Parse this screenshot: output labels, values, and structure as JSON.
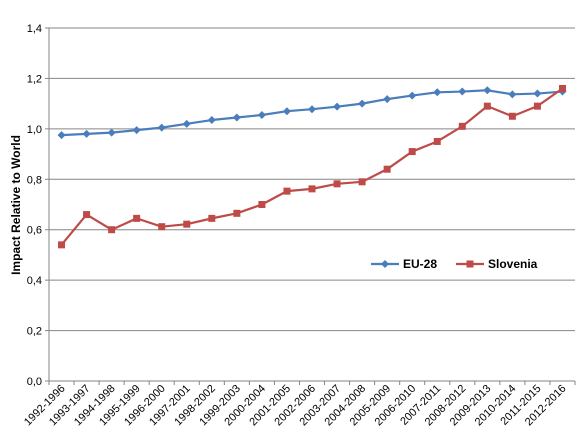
{
  "chart_data": {
    "type": "line",
    "title": "",
    "xlabel": "",
    "ylabel": "Impact Relative to World",
    "ylim": [
      0,
      1.4
    ],
    "yticks": [
      "0,0",
      "0,2",
      "0,4",
      "0,6",
      "0,8",
      "1,0",
      "1,2",
      "1,4"
    ],
    "grid": true,
    "legend_position": "center-right",
    "categories": [
      "1992-1996",
      "1993-1997",
      "1994-1998",
      "1995-1999",
      "1996-2000",
      "1997-2001",
      "1998-2002",
      "1999-2003",
      "2000-2004",
      "2001-2005",
      "2002-2006",
      "2003-2007",
      "2004-2008",
      "2005-2009",
      "2006-2010",
      "2007-2011",
      "2008-2012",
      "2009-2013",
      "2010-2014",
      "2011-2015",
      "2012-2016"
    ],
    "series": [
      {
        "name": "EU-28",
        "color": "#4a7ebb",
        "marker": "diamond",
        "values": [
          0.975,
          0.98,
          0.985,
          0.995,
          1.005,
          1.02,
          1.035,
          1.045,
          1.055,
          1.07,
          1.078,
          1.088,
          1.1,
          1.118,
          1.132,
          1.145,
          1.148,
          1.153,
          1.137,
          1.14,
          1.148
        ]
      },
      {
        "name": "Slovenia",
        "color": "#be4b48",
        "marker": "square",
        "values": [
          0.54,
          0.66,
          0.6,
          0.645,
          0.612,
          0.622,
          0.645,
          0.665,
          0.7,
          0.753,
          0.762,
          0.782,
          0.79,
          0.84,
          0.91,
          0.95,
          1.01,
          1.09,
          1.05,
          1.09,
          1.16
        ]
      }
    ]
  }
}
